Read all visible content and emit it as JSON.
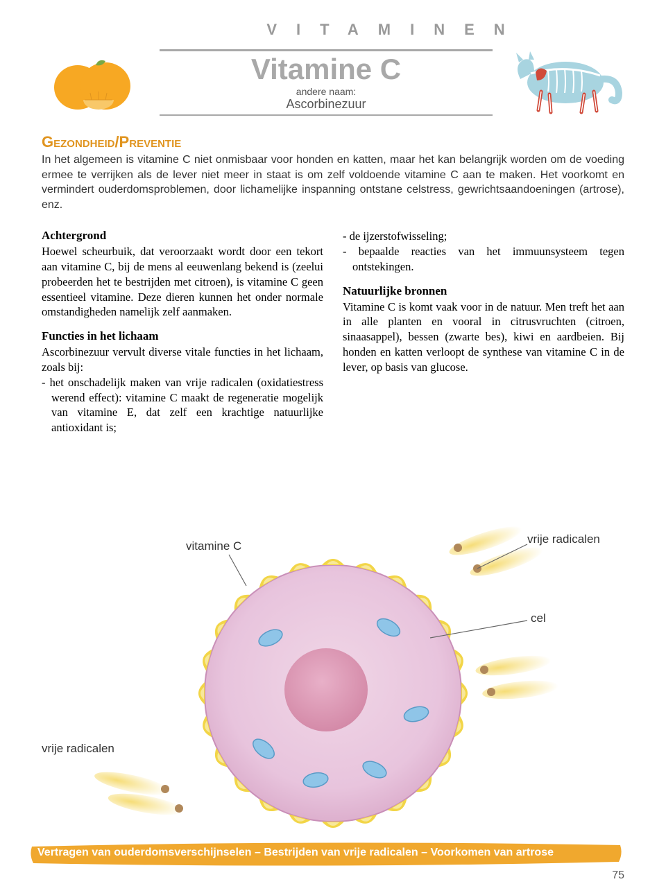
{
  "category_header": "VITAMINEN",
  "title": "Vitamine C",
  "subtitle_label": "andere naam:",
  "subtitle_value": "Ascorbinezuur",
  "section_heading": "Gezondheid/Preventie",
  "intro_text": "In het algemeen is vitamine C niet onmisbaar voor honden en katten, maar het kan belangrijk worden om de voeding ermee te verrijken als de lever niet meer in staat is om zelf voldoende vitamine C aan te maken. Het voorkomt en vermindert ouderdomsproblemen, door lichamelijke inspanning ontstane celstress, gewrichtsaandoeningen (artrose), enz.",
  "left_column": {
    "h1": "Achtergrond",
    "p1": "Hoewel scheurbuik, dat veroorzaakt wordt door een tekort aan vitamine C, bij de mens al eeuwenlang bekend is (zeelui probeerden het te bestrijden met citroen), is vitamine C geen essentieel vitamine. Deze dieren kunnen het onder normale omstandigheden namelijk zelf aanmaken.",
    "h2": "Functies in het lichaam",
    "p2": "Ascorbinezuur vervult diverse vitale functies in het lichaam, zoals bij:",
    "li1": "- het onschadelijk maken van vrije radicalen (oxidatiestress werend effect): vitamine C maakt de regeneratie mogelijk van vitamine E, dat zelf een krachtige natuurlijke antioxidant is;"
  },
  "right_column": {
    "li1": "- de ijzerstofwisseling;",
    "li2": "- bepaalde reacties van het immuunsysteem tegen ontstekingen.",
    "h1": "Natuurlijke bronnen",
    "p1": "Vitamine C is komt vaak voor in de natuur. Men treft het aan in alle planten en vooral in citrusvruchten (citroen, sinaasappel), bessen (zwarte bes), kiwi en aardbeien. Bij honden en katten verloopt de synthese van vitamine C in de lever, op basis van glucose."
  },
  "diagram": {
    "labels": {
      "vitamine_c": "vitamine C",
      "vrije_radicalen_right": "vrije radicalen",
      "cel": "cel",
      "vrije_radicalen_left": "vrije radicalen"
    },
    "colors": {
      "cell_outer": "#d9a8c8",
      "cell_inner": "#e8c4dd",
      "cell_nucleus": "#d48aa8",
      "cell_bumps": "#f2d547",
      "cell_bump_inner": "#f8e89a",
      "mito": "#8fc5e8",
      "mito_stroke": "#5a9bc7",
      "radical_trail": "#f5d968",
      "label_line": "#666666"
    }
  },
  "footer_text": "Vertragen van ouderdomsverschijnselen – Bestrijden van vrije radicalen – Voorkomen van artrose",
  "footer_bg": "#f0a82e",
  "page_number": "75",
  "orange_colors": {
    "fruit": "#f7a823",
    "leaf": "#7aa843",
    "slice": "#f8c869"
  },
  "cat_colors": {
    "body": "#a8d4e0",
    "bone": "#ffffff",
    "muscle": "#d04a3a"
  }
}
